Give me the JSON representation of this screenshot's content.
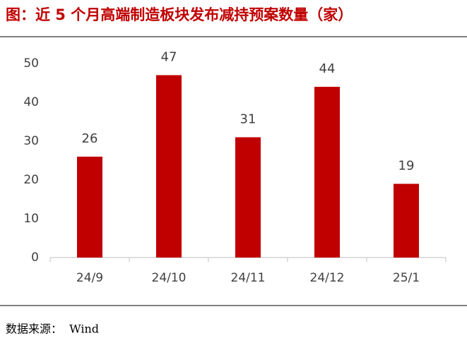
{
  "chart_data": {
    "type": "bar",
    "title": "图：近 5 个月高端制造板块发布减持预案数量（家）",
    "categories": [
      "24/9",
      "24/10",
      "24/11",
      "24/12",
      "25/1"
    ],
    "values": [
      26,
      47,
      31,
      44,
      19
    ],
    "color": "#c00000",
    "ylim": [
      0,
      50
    ],
    "yticks": [
      0,
      10,
      20,
      30,
      40,
      50
    ],
    "grid": false,
    "source": "数据来源：  Wind"
  }
}
